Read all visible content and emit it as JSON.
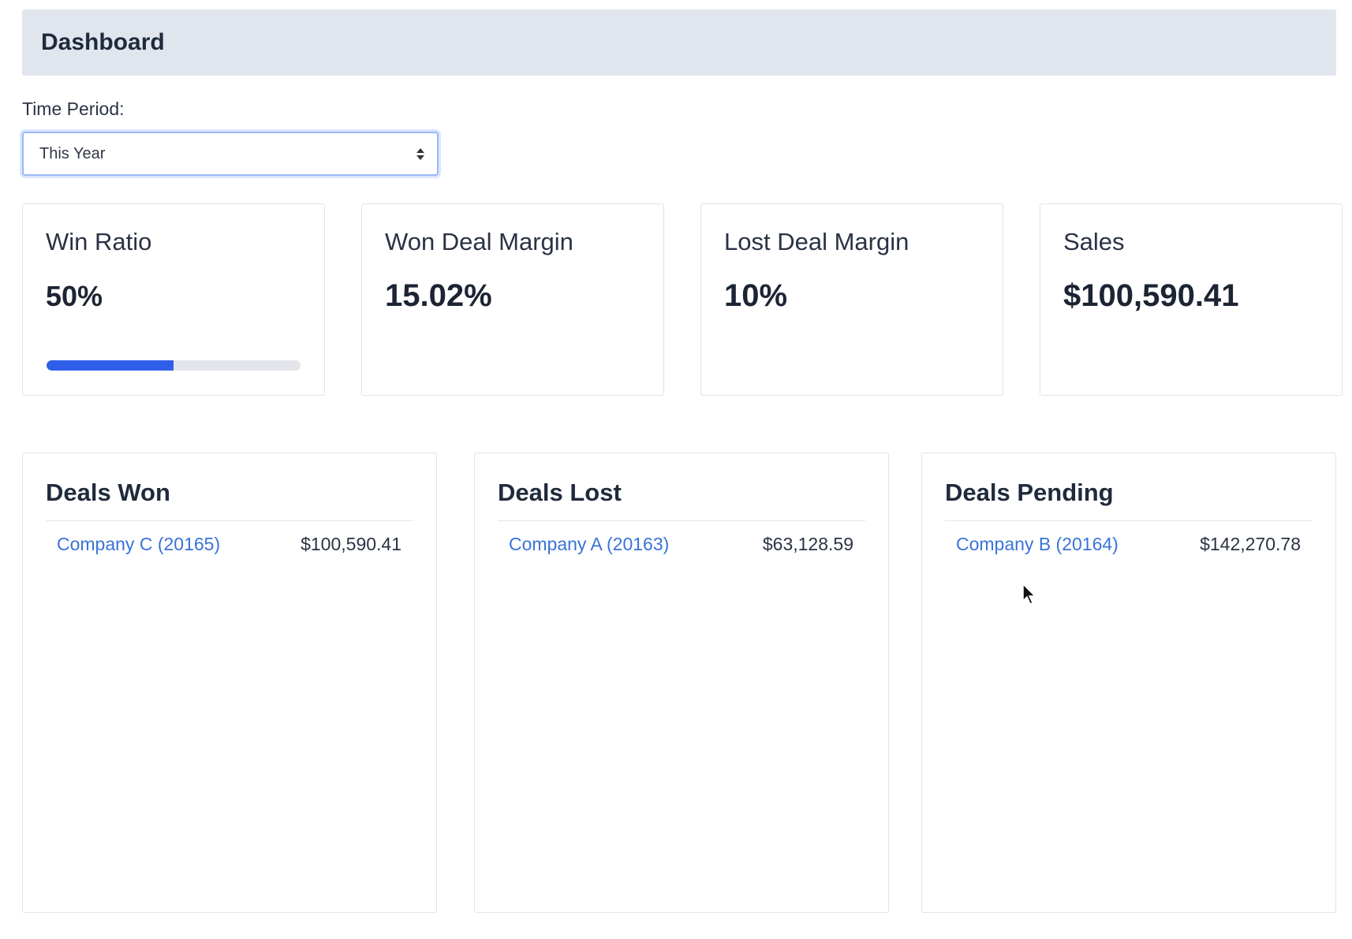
{
  "header": {
    "title": "Dashboard"
  },
  "time_period": {
    "label": "Time Period:",
    "selected": "This Year"
  },
  "metrics": [
    {
      "label": "Win Ratio",
      "value": "50%",
      "progress_percent": 50
    },
    {
      "label": "Won Deal Margin",
      "value": "15.02%"
    },
    {
      "label": "Lost Deal Margin",
      "value": "10%"
    },
    {
      "label": "Sales",
      "value": "$100,590.41"
    }
  ],
  "deals": {
    "won": {
      "title": "Deals Won",
      "items": [
        {
          "name": "Company C (20165)",
          "amount": "$100,590.41"
        }
      ]
    },
    "lost": {
      "title": "Deals Lost",
      "items": [
        {
          "name": "Company A (20163)",
          "amount": "$63,128.59"
        }
      ]
    },
    "pending": {
      "title": "Deals Pending",
      "items": [
        {
          "name": "Company B (20164)",
          "amount": "$142,270.78"
        }
      ]
    }
  },
  "colors": {
    "accent": "#2f5fe8",
    "link": "#3a73d8",
    "header_bg": "#e1e5ee"
  },
  "icons": {
    "select": "updown-arrows-icon",
    "cursor": "mouse-pointer-icon"
  }
}
